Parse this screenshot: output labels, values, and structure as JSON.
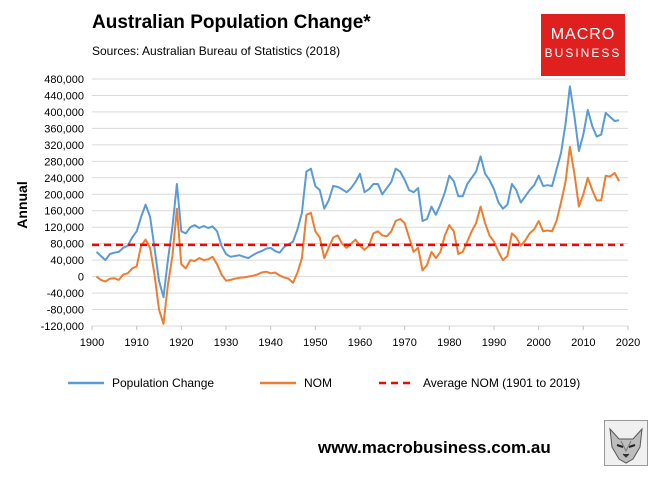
{
  "header": {
    "title": "Australian Population Change*",
    "subtitle": "Sources: Australian Bureau of Statistics (2018)"
  },
  "logo": {
    "line1": "MACRO",
    "line2": "BUSINESS"
  },
  "footer": {
    "url": "www.macrobusiness.com.au",
    "mascot_icon": "wolf-icon"
  },
  "colors": {
    "population": "#5b9bd5",
    "nom": "#ed7d31",
    "average": "#ff0000"
  },
  "chart_data": {
    "type": "line",
    "title": "Australian Population Change*",
    "ylabel": "Annual",
    "xlabel": "",
    "xlim": [
      1900,
      2020
    ],
    "ylim": [
      -120000,
      480000
    ],
    "x_ticks": [
      1900,
      1910,
      1920,
      1930,
      1940,
      1950,
      1960,
      1970,
      1980,
      1990,
      2000,
      2010,
      2020
    ],
    "y_ticks": [
      -120000,
      -80000,
      -40000,
      0,
      40000,
      80000,
      120000,
      160000,
      200000,
      240000,
      280000,
      320000,
      360000,
      400000,
      440000,
      480000
    ],
    "y_tick_labels": [
      "-120,000",
      "-80,000",
      "-40,000",
      "0",
      "40,000",
      "80,000",
      "120,000",
      "160,000",
      "200,000",
      "240,000",
      "280,000",
      "320,000",
      "360,000",
      "400,000",
      "440,000",
      "480,000"
    ],
    "grid": "horizontal",
    "legend_position": "bottom",
    "series": [
      {
        "name": "Population Change",
        "color": "#5b9bd5",
        "points": [
          [
            1901,
            60000
          ],
          [
            1902,
            50000
          ],
          [
            1903,
            40000
          ],
          [
            1904,
            55000
          ],
          [
            1905,
            58000
          ],
          [
            1906,
            60000
          ],
          [
            1907,
            70000
          ],
          [
            1908,
            75000
          ],
          [
            1909,
            95000
          ],
          [
            1910,
            110000
          ],
          [
            1911,
            145000
          ],
          [
            1912,
            175000
          ],
          [
            1913,
            145000
          ],
          [
            1914,
            70000
          ],
          [
            1915,
            -10000
          ],
          [
            1916,
            -50000
          ],
          [
            1917,
            40000
          ],
          [
            1918,
            120000
          ],
          [
            1919,
            225000
          ],
          [
            1920,
            110000
          ],
          [
            1921,
            105000
          ],
          [
            1922,
            120000
          ],
          [
            1923,
            125000
          ],
          [
            1924,
            118000
          ],
          [
            1925,
            123000
          ],
          [
            1926,
            118000
          ],
          [
            1927,
            122000
          ],
          [
            1928,
            110000
          ],
          [
            1929,
            75000
          ],
          [
            1930,
            55000
          ],
          [
            1931,
            48000
          ],
          [
            1932,
            50000
          ],
          [
            1933,
            52000
          ],
          [
            1934,
            48000
          ],
          [
            1935,
            45000
          ],
          [
            1936,
            52000
          ],
          [
            1937,
            58000
          ],
          [
            1938,
            62000
          ],
          [
            1939,
            68000
          ],
          [
            1940,
            70000
          ],
          [
            1941,
            62000
          ],
          [
            1942,
            58000
          ],
          [
            1943,
            72000
          ],
          [
            1944,
            78000
          ],
          [
            1945,
            85000
          ],
          [
            1946,
            115000
          ],
          [
            1947,
            155000
          ],
          [
            1948,
            255000
          ],
          [
            1949,
            262000
          ],
          [
            1950,
            220000
          ],
          [
            1951,
            210000
          ],
          [
            1952,
            165000
          ],
          [
            1953,
            185000
          ],
          [
            1954,
            220000
          ],
          [
            1955,
            218000
          ],
          [
            1956,
            212000
          ],
          [
            1957,
            205000
          ],
          [
            1958,
            215000
          ],
          [
            1959,
            230000
          ],
          [
            1960,
            250000
          ],
          [
            1961,
            205000
          ],
          [
            1962,
            212000
          ],
          [
            1963,
            225000
          ],
          [
            1964,
            225000
          ],
          [
            1965,
            200000
          ],
          [
            1966,
            215000
          ],
          [
            1967,
            230000
          ],
          [
            1968,
            262000
          ],
          [
            1969,
            255000
          ],
          [
            1970,
            235000
          ],
          [
            1971,
            210000
          ],
          [
            1972,
            205000
          ],
          [
            1973,
            215000
          ],
          [
            1974,
            135000
          ],
          [
            1975,
            140000
          ],
          [
            1976,
            170000
          ],
          [
            1977,
            150000
          ],
          [
            1978,
            175000
          ],
          [
            1979,
            205000
          ],
          [
            1980,
            245000
          ],
          [
            1981,
            232000
          ],
          [
            1982,
            195000
          ],
          [
            1983,
            195000
          ],
          [
            1984,
            225000
          ],
          [
            1985,
            240000
          ],
          [
            1986,
            255000
          ],
          [
            1987,
            292000
          ],
          [
            1988,
            250000
          ],
          [
            1989,
            235000
          ],
          [
            1990,
            212000
          ],
          [
            1991,
            180000
          ],
          [
            1992,
            165000
          ],
          [
            1993,
            175000
          ],
          [
            1994,
            225000
          ],
          [
            1995,
            210000
          ],
          [
            1996,
            180000
          ],
          [
            1997,
            195000
          ],
          [
            1998,
            210000
          ],
          [
            1999,
            222000
          ],
          [
            2000,
            245000
          ],
          [
            2001,
            220000
          ],
          [
            2002,
            222000
          ],
          [
            2003,
            220000
          ],
          [
            2004,
            260000
          ],
          [
            2005,
            300000
          ],
          [
            2006,
            370000
          ],
          [
            2007,
            462000
          ],
          [
            2008,
            390000
          ],
          [
            2009,
            305000
          ],
          [
            2010,
            345000
          ],
          [
            2011,
            405000
          ],
          [
            2012,
            365000
          ],
          [
            2013,
            340000
          ],
          [
            2014,
            345000
          ],
          [
            2015,
            398000
          ],
          [
            2016,
            388000
          ],
          [
            2017,
            378000
          ],
          [
            2018,
            380000
          ]
        ]
      },
      {
        "name": "NOM",
        "color": "#ed7d31",
        "points": [
          [
            1901,
            0
          ],
          [
            1902,
            -8000
          ],
          [
            1903,
            -12000
          ],
          [
            1904,
            -5000
          ],
          [
            1905,
            -4000
          ],
          [
            1906,
            -8000
          ],
          [
            1907,
            5000
          ],
          [
            1908,
            8000
          ],
          [
            1909,
            20000
          ],
          [
            1910,
            25000
          ],
          [
            1911,
            75000
          ],
          [
            1912,
            90000
          ],
          [
            1913,
            70000
          ],
          [
            1914,
            5000
          ],
          [
            1915,
            -80000
          ],
          [
            1916,
            -115000
          ],
          [
            1917,
            -20000
          ],
          [
            1918,
            50000
          ],
          [
            1919,
            165000
          ],
          [
            1920,
            30000
          ],
          [
            1921,
            20000
          ],
          [
            1922,
            40000
          ],
          [
            1923,
            38000
          ],
          [
            1924,
            45000
          ],
          [
            1925,
            40000
          ],
          [
            1926,
            42000
          ],
          [
            1927,
            48000
          ],
          [
            1928,
            30000
          ],
          [
            1929,
            5000
          ],
          [
            1930,
            -10000
          ],
          [
            1931,
            -8000
          ],
          [
            1932,
            -5000
          ],
          [
            1933,
            -3000
          ],
          [
            1934,
            -2000
          ],
          [
            1935,
            0
          ],
          [
            1936,
            2000
          ],
          [
            1937,
            5000
          ],
          [
            1938,
            10000
          ],
          [
            1939,
            12000
          ],
          [
            1940,
            8000
          ],
          [
            1941,
            10000
          ],
          [
            1942,
            3000
          ],
          [
            1943,
            -2000
          ],
          [
            1944,
            -5000
          ],
          [
            1945,
            -15000
          ],
          [
            1946,
            10000
          ],
          [
            1947,
            45000
          ],
          [
            1948,
            150000
          ],
          [
            1949,
            155000
          ],
          [
            1950,
            110000
          ],
          [
            1951,
            95000
          ],
          [
            1952,
            45000
          ],
          [
            1953,
            70000
          ],
          [
            1954,
            95000
          ],
          [
            1955,
            100000
          ],
          [
            1956,
            80000
          ],
          [
            1957,
            70000
          ],
          [
            1958,
            80000
          ],
          [
            1959,
            90000
          ],
          [
            1960,
            75000
          ],
          [
            1961,
            65000
          ],
          [
            1962,
            75000
          ],
          [
            1963,
            105000
          ],
          [
            1964,
            110000
          ],
          [
            1965,
            100000
          ],
          [
            1966,
            98000
          ],
          [
            1967,
            110000
          ],
          [
            1968,
            135000
          ],
          [
            1969,
            140000
          ],
          [
            1970,
            130000
          ],
          [
            1971,
            95000
          ],
          [
            1972,
            60000
          ],
          [
            1973,
            70000
          ],
          [
            1974,
            15000
          ],
          [
            1975,
            28000
          ],
          [
            1976,
            60000
          ],
          [
            1977,
            45000
          ],
          [
            1978,
            60000
          ],
          [
            1979,
            100000
          ],
          [
            1980,
            125000
          ],
          [
            1981,
            110000
          ],
          [
            1982,
            55000
          ],
          [
            1983,
            60000
          ],
          [
            1984,
            85000
          ],
          [
            1985,
            110000
          ],
          [
            1986,
            130000
          ],
          [
            1987,
            170000
          ],
          [
            1988,
            130000
          ],
          [
            1989,
            100000
          ],
          [
            1990,
            85000
          ],
          [
            1991,
            60000
          ],
          [
            1992,
            40000
          ],
          [
            1993,
            50000
          ],
          [
            1994,
            105000
          ],
          [
            1995,
            95000
          ],
          [
            1996,
            75000
          ],
          [
            1997,
            88000
          ],
          [
            1998,
            105000
          ],
          [
            1999,
            115000
          ],
          [
            2000,
            135000
          ],
          [
            2001,
            110000
          ],
          [
            2002,
            112000
          ],
          [
            2003,
            110000
          ],
          [
            2004,
            135000
          ],
          [
            2005,
            180000
          ],
          [
            2006,
            230000
          ],
          [
            2007,
            315000
          ],
          [
            2008,
            250000
          ],
          [
            2009,
            170000
          ],
          [
            2010,
            200000
          ],
          [
            2011,
            240000
          ],
          [
            2012,
            210000
          ],
          [
            2013,
            185000
          ],
          [
            2014,
            185000
          ],
          [
            2015,
            245000
          ],
          [
            2016,
            243000
          ],
          [
            2017,
            252000
          ],
          [
            2018,
            232000
          ]
        ]
      },
      {
        "name": "Average NOM (1901 to 2019)",
        "color": "#ff0000",
        "style": "dashed",
        "points": [
          [
            1900,
            77000
          ],
          [
            2019,
            77000
          ]
        ]
      }
    ]
  }
}
